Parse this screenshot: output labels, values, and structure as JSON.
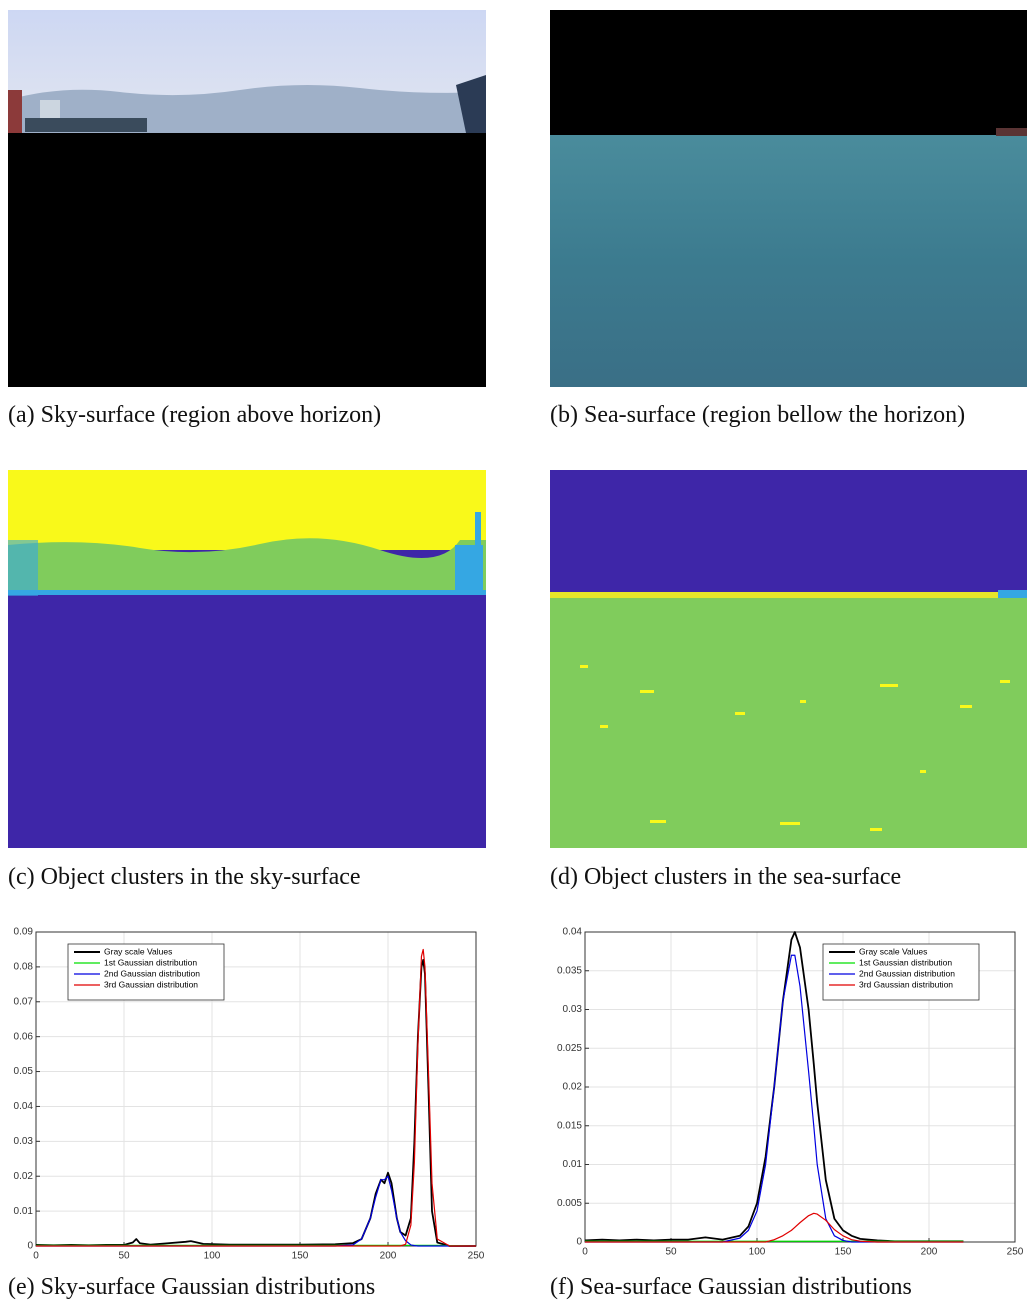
{
  "figures": [
    {
      "caption": "(a) Sky-surface (region above horizon)"
    },
    {
      "caption": "(b) Sea-surface (region bellow the horizon)"
    },
    {
      "caption": "(c) Object clusters in the sky-surface"
    },
    {
      "caption": "(d) Object clusters in the sea-surface"
    }
  ],
  "chart_data": [
    {
      "type": "line",
      "caption": "(e) Sky-surface Gaussian distributions",
      "x": [
        0,
        10,
        20,
        30,
        40,
        50,
        55,
        57,
        59,
        65,
        75,
        85,
        88,
        95,
        110,
        130,
        150,
        170,
        180,
        185,
        190,
        193,
        196,
        198,
        200,
        202,
        205,
        207,
        210,
        213,
        215,
        217,
        219,
        220,
        221,
        223,
        225,
        228,
        235,
        250
      ],
      "series": [
        {
          "name": "Gray scale Values",
          "color": "#000000",
          "values": [
            0.0003,
            0.0002,
            0.0003,
            0.0002,
            0.0003,
            0.0003,
            0.001,
            0.002,
            0.0008,
            0.0004,
            0.0008,
            0.0012,
            0.0014,
            0.0006,
            0.0004,
            0.0004,
            0.0004,
            0.0005,
            0.0008,
            0.002,
            0.008,
            0.015,
            0.019,
            0.018,
            0.021,
            0.018,
            0.008,
            0.004,
            0.003,
            0.008,
            0.03,
            0.06,
            0.08,
            0.082,
            0.078,
            0.045,
            0.01,
            0.001,
            0,
            0
          ]
        },
        {
          "name": "1st Gaussian distribution",
          "color": "#00e000",
          "values": [
            0.0002,
            0.0002,
            0.0002,
            0.0002,
            0.0002,
            0.0002,
            0.0002,
            0.0002,
            0.0002,
            0.0002,
            0.0002,
            0.0002,
            0.0002,
            0.0002,
            0.0002,
            0.0002,
            0.0002,
            0.0002,
            0.0002,
            0.0002,
            0.0002,
            0.0002,
            0.0002,
            0.0002,
            0.0002,
            0.0002,
            0.0002,
            0.0002,
            0.0002,
            0.0002,
            0.0002,
            0.0002,
            0.0002,
            0.0002,
            0.0002,
            0.0002,
            0.0002,
            0.0002,
            0.0001,
            0
          ]
        },
        {
          "name": "2nd Gaussian distribution",
          "color": "#0000e0",
          "values": [
            0,
            0,
            0,
            0,
            0,
            0,
            0,
            0,
            0,
            0,
            0,
            0,
            0,
            0,
            0,
            0,
            0,
            0,
            0.0003,
            0.002,
            0.008,
            0.014,
            0.019,
            0.019,
            0.02,
            0.016,
            0.008,
            0.004,
            0.0015,
            0.0003,
            0.0001,
            0,
            0,
            0,
            0,
            0,
            0,
            0,
            0,
            0
          ]
        },
        {
          "name": "3rd Gaussian distribution",
          "color": "#e00000",
          "values": [
            0,
            0,
            0,
            0,
            0,
            0,
            0,
            0,
            0,
            0,
            0,
            0,
            0,
            0,
            0,
            0,
            0,
            0,
            0,
            0,
            0,
            0,
            0,
            0,
            0,
            0,
            0,
            0,
            0.0005,
            0.006,
            0.024,
            0.058,
            0.083,
            0.085,
            0.08,
            0.05,
            0.018,
            0.002,
            0,
            0
          ]
        }
      ],
      "xlim": [
        0,
        250
      ],
      "xticks": [
        0,
        50,
        100,
        150,
        200,
        250
      ],
      "ylim": [
        0,
        0.09
      ],
      "yticks": [
        0,
        0.01,
        0.02,
        0.03,
        0.04,
        0.05,
        0.06,
        0.07,
        0.08,
        0.09
      ],
      "grid": true,
      "legend": "upper left"
    },
    {
      "type": "line",
      "caption": "(f) Sea-surface Gaussian distributions",
      "x": [
        0,
        10,
        20,
        30,
        40,
        50,
        60,
        70,
        80,
        90,
        95,
        100,
        105,
        110,
        115,
        120,
        122,
        125,
        130,
        133,
        135,
        140,
        145,
        150,
        155,
        160,
        170,
        180,
        200,
        220
      ],
      "series": [
        {
          "name": "Gray scale Values",
          "color": "#000000",
          "values": [
            0.0002,
            0.0003,
            0.0002,
            0.0003,
            0.0002,
            0.0003,
            0.0003,
            0.0006,
            0.0003,
            0.0008,
            0.002,
            0.005,
            0.011,
            0.02,
            0.031,
            0.039,
            0.04,
            0.038,
            0.03,
            0.023,
            0.018,
            0.008,
            0.003,
            0.0015,
            0.0008,
            0.0004,
            0.0002,
            0.0001,
            0.0001,
            0.0001
          ]
        },
        {
          "name": "1st Gaussian distribution",
          "color": "#00e000",
          "values": [
            0.0001,
            0.0001,
            0.0001,
            0.0001,
            0.0001,
            0.0001,
            0.0001,
            0.0001,
            0.0001,
            0.0001,
            0.0001,
            0.0001,
            0.0001,
            0.0001,
            0.0001,
            0.0001,
            0.0001,
            0.0001,
            0.0001,
            0.0001,
            0.0001,
            0.0001,
            0.0001,
            0.0001,
            0.0001,
            0.0001,
            0.0001,
            0.0001,
            0.0001,
            0.0001
          ]
        },
        {
          "name": "2nd Gaussian distribution",
          "color": "#0000e0",
          "values": [
            0,
            0,
            0,
            0,
            0,
            0,
            0,
            0,
            0,
            0.0005,
            0.0015,
            0.004,
            0.01,
            0.02,
            0.031,
            0.037,
            0.037,
            0.033,
            0.022,
            0.015,
            0.01,
            0.003,
            0.0008,
            0.0002,
            0,
            0,
            0,
            0,
            0,
            0
          ]
        },
        {
          "name": "3rd Gaussian distribution",
          "color": "#e00000",
          "values": [
            0,
            0,
            0,
            0,
            0,
            0,
            0,
            0,
            0,
            0,
            0,
            0,
            0,
            0.0003,
            0.0008,
            0.0015,
            0.0019,
            0.0025,
            0.0034,
            0.0037,
            0.0036,
            0.0028,
            0.0016,
            0.0008,
            0.0003,
            0.0001,
            0,
            0,
            0,
            0
          ]
        }
      ],
      "xlim": [
        0,
        250
      ],
      "xticks": [
        0,
        50,
        100,
        150,
        200,
        250
      ],
      "ylim": [
        0,
        0.04
      ],
      "yticks": [
        0,
        0.005,
        0.01,
        0.015,
        0.02,
        0.025,
        0.03,
        0.035,
        0.04
      ],
      "grid": true,
      "legend": "upper right"
    }
  ]
}
